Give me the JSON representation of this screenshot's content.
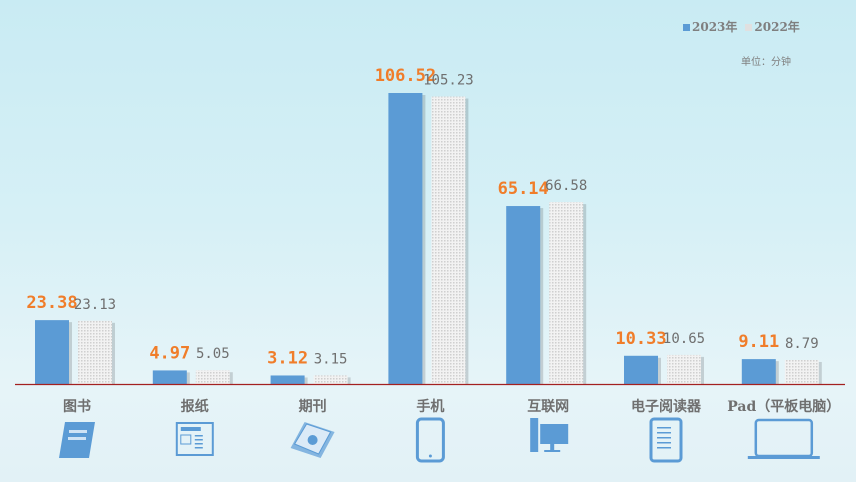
{
  "chart_data": {
    "type": "bar",
    "categories": [
      "图书",
      "报纸",
      "期刊",
      "手机",
      "互联网",
      "电子阅读器",
      "Pad（平板电脑）"
    ],
    "series": [
      {
        "name": "2023年",
        "values": [
          23.38,
          4.97,
          3.12,
          106.52,
          65.14,
          10.33,
          9.11
        ],
        "color": "#5b9bd5",
        "label_color": "#f07d2a"
      },
      {
        "name": "2022年",
        "values": [
          23.13,
          5.05,
          3.15,
          105.23,
          66.58,
          10.65,
          8.79
        ],
        "color": "#e0e0e0",
        "label_color": "#6f6f6f"
      }
    ],
    "unit_note": "单位：分钟",
    "ylim": [
      0,
      110
    ],
    "grid": false,
    "legend": "top-right",
    "category_icons": [
      "book-icon",
      "newspaper-icon",
      "magazine-icon",
      "mobile-phone-icon",
      "desktop-computer-icon",
      "ereader-icon",
      "tablet-icon"
    ]
  }
}
